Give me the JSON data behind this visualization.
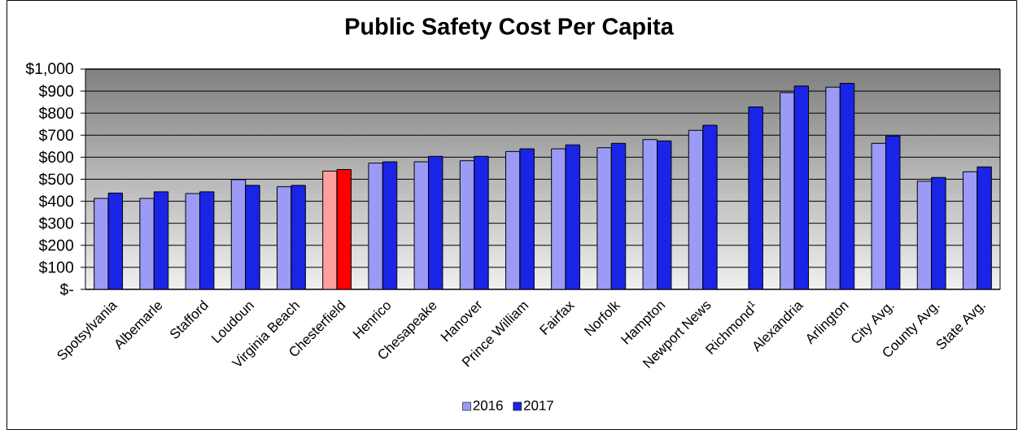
{
  "chart_data": {
    "type": "bar",
    "title": "Public Safety Cost Per Capita",
    "categories": [
      "Spotsylvania",
      "Albemarle",
      "Stafford",
      "Loudoun",
      "Virginia Beach",
      "Chesterfield",
      "Henrico",
      "Chesapeake",
      "Hanover",
      "Prince William",
      "Fairfax",
      "Norfolk",
      "Hampton",
      "Newport News",
      "Richmond$^{1}$",
      "Alexandria",
      "Arlington",
      "City Avg.",
      "County Avg.",
      "State Avg."
    ],
    "series": [
      {
        "name": "2016",
        "color": "#9b9bf5",
        "colors": [
          "#9b9bf5",
          "#9b9bf5",
          "#9b9bf5",
          "#9b9bf5",
          "#9b9bf5",
          "#ff9f9f",
          "#9b9bf5",
          "#9b9bf5",
          "#9b9bf5",
          "#9b9bf5",
          "#9b9bf5",
          "#9b9bf5",
          "#9b9bf5",
          "#9b9bf5",
          "#9b9bf5",
          "#9b9bf5",
          "#9b9bf5",
          "#9b9bf5",
          "#9b9bf5",
          "#9b9bf5"
        ],
        "values": [
          413,
          413,
          435,
          498,
          466,
          537,
          573,
          579,
          584,
          626,
          638,
          643,
          680,
          722,
          null,
          893,
          918,
          663,
          491,
          534
        ]
      },
      {
        "name": "2017",
        "color": "#1a24e6",
        "colors": [
          "#1a24e6",
          "#1a24e6",
          "#1a24e6",
          "#1a24e6",
          "#1a24e6",
          "#ff0000",
          "#1a24e6",
          "#1a24e6",
          "#1a24e6",
          "#1a24e6",
          "#1a24e6",
          "#1a24e6",
          "#1a24e6",
          "#1a24e6",
          "#1a24e6",
          "#1a24e6",
          "#1a24e6",
          "#1a24e6",
          "#1a24e6",
          "#1a24e6"
        ],
        "values": [
          437,
          443,
          443,
          472,
          472,
          544,
          579,
          604,
          604,
          638,
          656,
          663,
          674,
          745,
          828,
          923,
          935,
          696,
          508,
          556
        ]
      }
    ],
    "ylim": [
      0,
      1000
    ],
    "yticks": [
      {
        "value": 0,
        "label": "$-"
      },
      {
        "value": 100,
        "label": "$100"
      },
      {
        "value": 200,
        "label": "$200"
      },
      {
        "value": 300,
        "label": "$300"
      },
      {
        "value": 400,
        "label": "$400"
      },
      {
        "value": 500,
        "label": "$500"
      },
      {
        "value": 600,
        "label": "$600"
      },
      {
        "value": 700,
        "label": "$700"
      },
      {
        "value": 800,
        "label": "$800"
      },
      {
        "value": 900,
        "label": "$900"
      },
      {
        "value": 1000,
        "label": "$1,000"
      }
    ],
    "grid": "y",
    "legend": "bottom"
  }
}
